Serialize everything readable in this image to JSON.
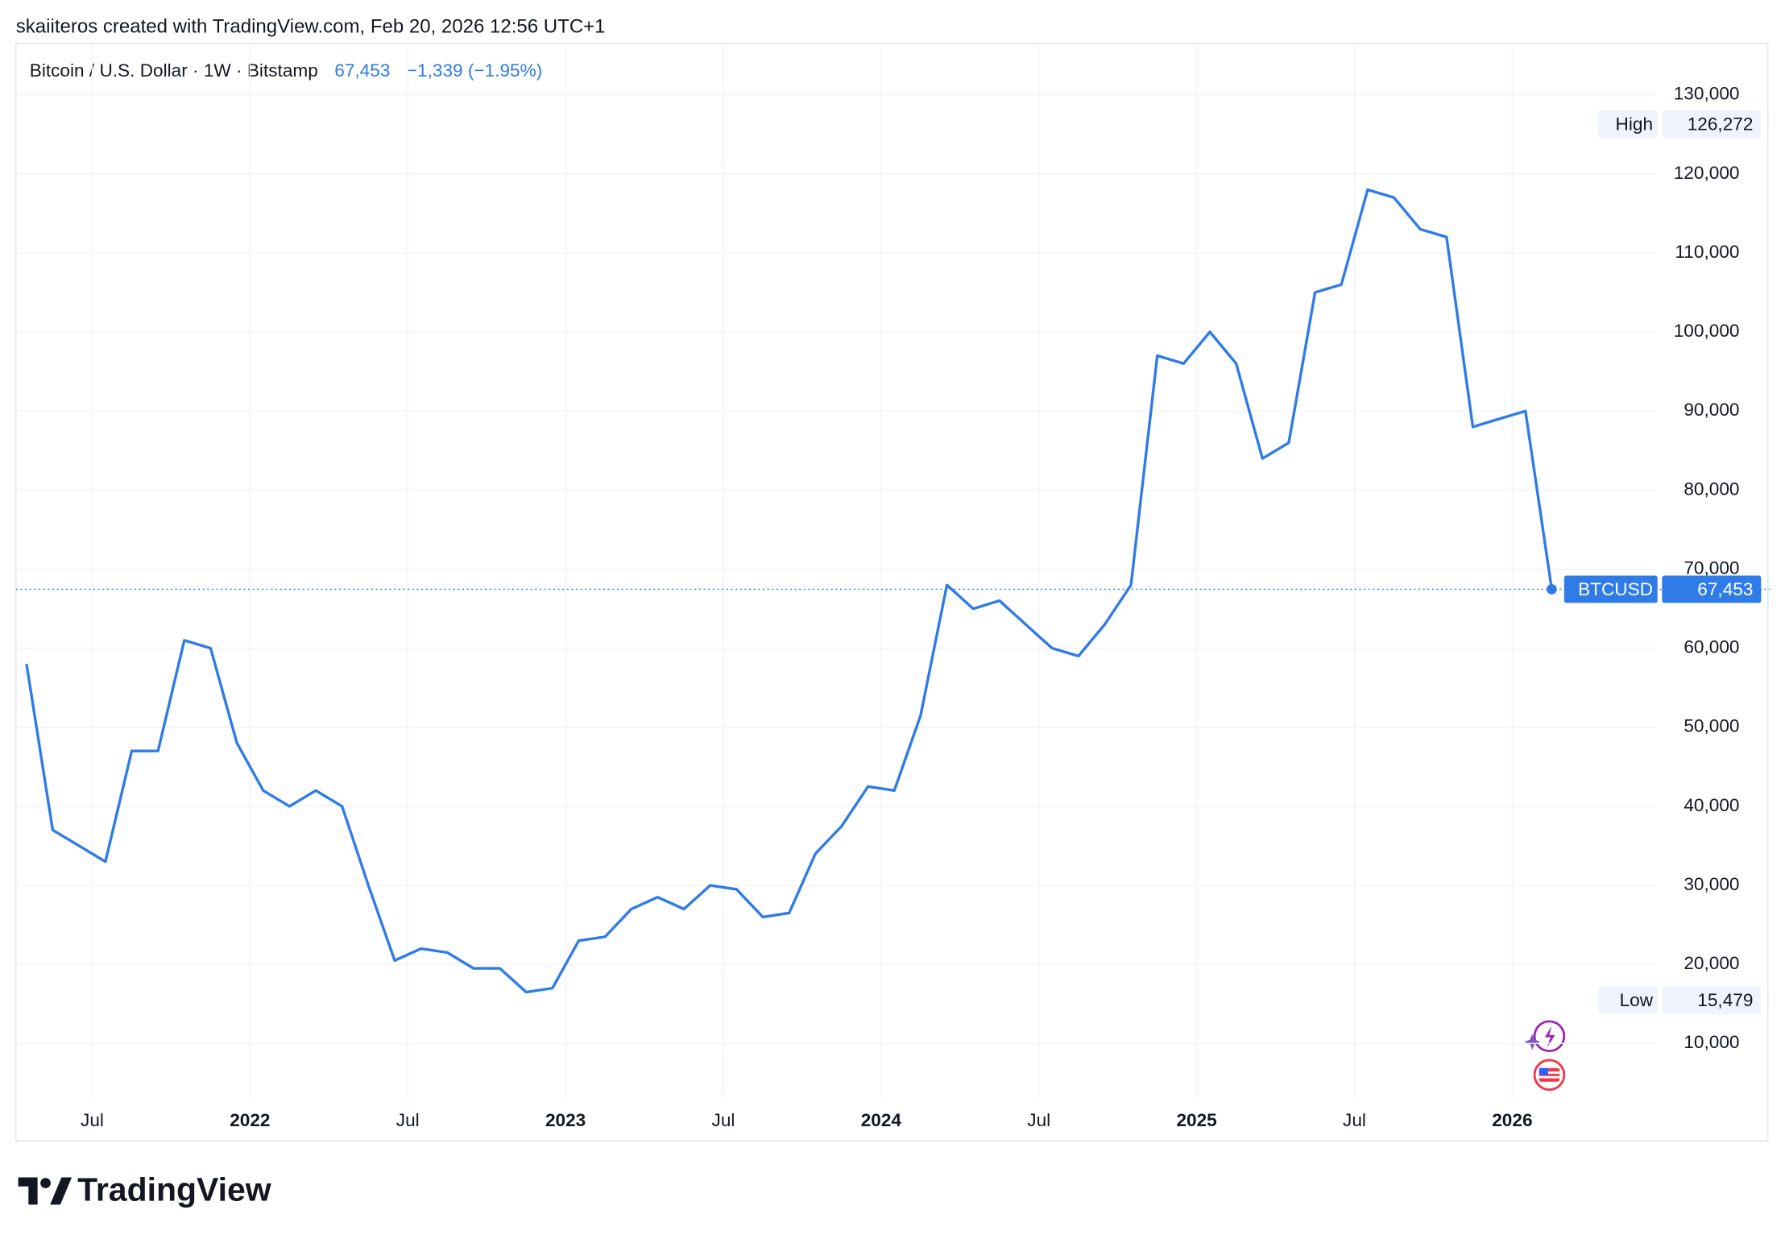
{
  "chart_data": {
    "type": "line",
    "attribution": "skaiiteros created with TradingView.com, Feb 20, 2026 12:56 UTC+1",
    "title": "Bitcoin / U.S. Dollar · 1W · Bitstamp",
    "last_price": "67,453",
    "change": "−1,339 (−1.95%)",
    "brand": "TradingView",
    "x": [
      "2021-04",
      "2021-05",
      "2021-06",
      "2021-07",
      "2021-08",
      "2021-09",
      "2021-10",
      "2021-11",
      "2021-12",
      "2022-01",
      "2022-02",
      "2022-03",
      "2022-04",
      "2022-05",
      "2022-06",
      "2022-07",
      "2022-08",
      "2022-09",
      "2022-10",
      "2022-11",
      "2022-12",
      "2023-01",
      "2023-02",
      "2023-03",
      "2023-04",
      "2023-05",
      "2023-06",
      "2023-07",
      "2023-08",
      "2023-09",
      "2023-10",
      "2023-11",
      "2023-12",
      "2024-01",
      "2024-02",
      "2024-03",
      "2024-04",
      "2024-05",
      "2024-06",
      "2024-07",
      "2024-08",
      "2024-09",
      "2024-10",
      "2024-11",
      "2024-12",
      "2025-01",
      "2025-02",
      "2025-03",
      "2025-04",
      "2025-05",
      "2025-06",
      "2025-07",
      "2025-08",
      "2025-09",
      "2025-10",
      "2025-11",
      "2025-12",
      "2026-01",
      "2026-02"
    ],
    "series": [
      {
        "name": "BTCUSD",
        "color": "#2f7be8",
        "values": [
          58000,
          37000,
          35000,
          33000,
          47000,
          47000,
          61000,
          60000,
          48000,
          42000,
          40000,
          42000,
          40000,
          30000,
          20500,
          22000,
          21500,
          19500,
          19500,
          16500,
          17000,
          23000,
          23500,
          27000,
          28500,
          27000,
          30000,
          29500,
          26000,
          26500,
          34000,
          37500,
          42500,
          42000,
          51500,
          68000,
          65000,
          66000,
          63000,
          60000,
          59000,
          63000,
          68000,
          97000,
          96000,
          100000,
          96000,
          84000,
          86000,
          105000,
          106000,
          118000,
          117000,
          113000,
          112000,
          88000,
          89000,
          90000,
          67453
        ]
      }
    ],
    "ylim": [
      3000,
      136500
    ],
    "yticks": [
      {
        "value": 10000,
        "label": "10,000"
      },
      {
        "value": 20000,
        "label": "20,000"
      },
      {
        "value": 30000,
        "label": "30,000"
      },
      {
        "value": 40000,
        "label": "40,000"
      },
      {
        "value": 50000,
        "label": "50,000"
      },
      {
        "value": 60000,
        "label": "60,000"
      },
      {
        "value": 70000,
        "label": "70,000"
      },
      {
        "value": 80000,
        "label": "80,000"
      },
      {
        "value": 90000,
        "label": "90,000"
      },
      {
        "value": 100000,
        "label": "100,000"
      },
      {
        "value": 110000,
        "label": "110,000"
      },
      {
        "value": 120000,
        "label": "120,000"
      },
      {
        "value": 130000,
        "label": "130,000"
      }
    ],
    "xticks": [
      {
        "value": "2021-07",
        "label": "Jul"
      },
      {
        "value": "2022-01",
        "label": "2022"
      },
      {
        "value": "2022-07",
        "label": "Jul"
      },
      {
        "value": "2023-01",
        "label": "2023"
      },
      {
        "value": "2023-07",
        "label": "Jul"
      },
      {
        "value": "2024-01",
        "label": "2024"
      },
      {
        "value": "2024-07",
        "label": "Jul"
      },
      {
        "value": "2025-01",
        "label": "2025"
      },
      {
        "value": "2025-07",
        "label": "Jul"
      },
      {
        "value": "2026-01",
        "label": "2026"
      }
    ],
    "annotations": [
      {
        "label": "High",
        "value": 126272,
        "value_label": "126,272"
      },
      {
        "label": "Low",
        "value": 15479,
        "value_label": "15,479"
      },
      {
        "label": "BTCUSD",
        "value": 67453,
        "value_label": "67,453"
      }
    ],
    "grid": true
  }
}
